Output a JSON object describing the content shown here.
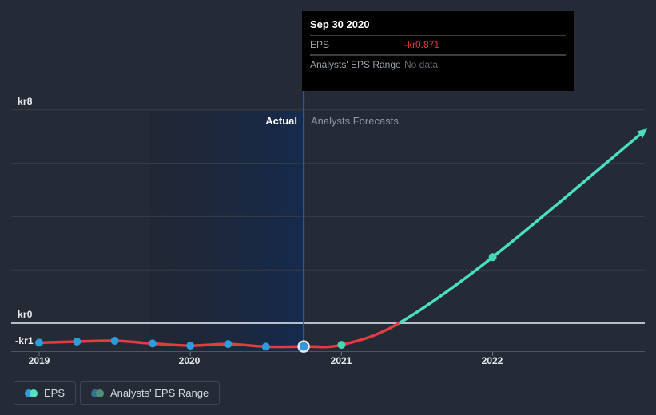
{
  "tooltip": {
    "date": "Sep 30 2020",
    "eps_label": "EPS",
    "eps_value": "-kr0.871",
    "range_label": "Analysts' EPS Range",
    "range_value": "No data"
  },
  "annotations": {
    "actual": "Actual",
    "forecast": "Analysts Forecasts"
  },
  "legend": {
    "items": [
      {
        "label": "EPS",
        "colors": [
          "#2d9cdb",
          "#52e2c4"
        ]
      },
      {
        "label": "Analysts' EPS Range",
        "colors": [
          "#36718f",
          "#4e8f80"
        ]
      }
    ]
  },
  "colors": {
    "background": "#252b36",
    "band_left": "#1e2533",
    "band_right": "#152a4d",
    "gridline": "#363d49",
    "zero_line": "#b9bec6",
    "axis_line": "#4e5664",
    "divider_line": "#2e5f9e",
    "negative_value_text": "#e5383f"
  },
  "chart_data": {
    "type": "line",
    "unit": "kr",
    "currency_prefix": "kr",
    "y_tick_labels": [
      "kr8",
      "kr0",
      "-kr1"
    ],
    "x_tick_labels": [
      "2019",
      "2020",
      "2021",
      "2022"
    ],
    "x_ticks": [
      2019,
      2020,
      2021,
      2022
    ],
    "grid_kr": [
      8,
      6,
      4,
      2
    ],
    "ylim": [
      -1.1,
      8
    ],
    "divider_x": 2020.75,
    "band_x": [
      2019.73,
      2020.75
    ],
    "highlight_point": [
      2020.75,
      -0.871
    ],
    "highlight_date": "Sep 30 2020",
    "series": [
      {
        "name": "EPS (actual)",
        "color": "#e23b41",
        "marker_color": "#2d9cdb",
        "points": [
          [
            2019.0,
            -0.73
          ],
          [
            2019.25,
            -0.69
          ],
          [
            2019.5,
            -0.66
          ],
          [
            2019.75,
            -0.76
          ],
          [
            2020.0,
            -0.84
          ],
          [
            2020.25,
            -0.78
          ],
          [
            2020.5,
            -0.88
          ],
          [
            2020.75,
            -0.871
          ]
        ],
        "markers": [
          [
            2019.0,
            -0.73
          ],
          [
            2019.25,
            -0.69
          ],
          [
            2019.5,
            -0.66
          ],
          [
            2019.75,
            -0.76
          ],
          [
            2020.0,
            -0.84
          ],
          [
            2020.25,
            -0.78
          ],
          [
            2020.5,
            -0.88
          ],
          [
            2020.75,
            -0.871
          ]
        ]
      },
      {
        "name": "EPS (analysts forecast)",
        "color": "#4adfc0",
        "marker_color": "#43d9b4",
        "points": [
          [
            2021.0,
            -0.81
          ],
          [
            2021.38,
            0
          ],
          [
            2022.0,
            2.48
          ],
          [
            2022.99,
            7.15
          ]
        ],
        "markers": [
          [
            2021.0,
            -0.81
          ],
          [
            2022.0,
            2.48
          ]
        ]
      }
    ]
  }
}
